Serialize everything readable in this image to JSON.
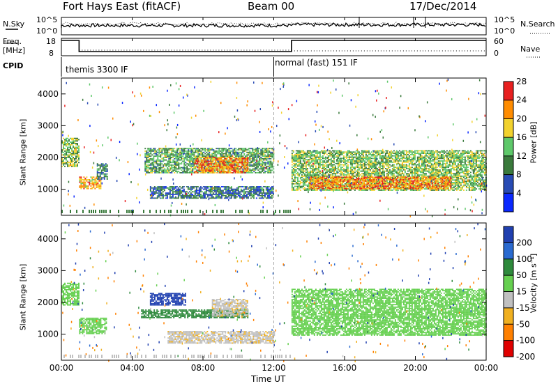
{
  "header": {
    "station": "Fort Hays East (fitACF)",
    "beam": "Beam 00",
    "date": "17/Dec/2014"
  },
  "top_panel": {
    "nsky_label": "N.Sky",
    "nsearch_label": "N.Search",
    "left_ticks": [
      "10^5",
      "10^0"
    ],
    "right_ticks": [
      "10^5",
      "10^0"
    ],
    "freq_label_1": "Freq.",
    "freq_label_2": "[MHz]",
    "freq_ticks": [
      "18",
      "8"
    ],
    "nave_label": "Nave",
    "nave_ticks": [
      "60",
      "0"
    ],
    "cpid_label": "CPID",
    "cpid_modes": [
      "themis 3300 IF",
      "normal (fast) 151 IF"
    ]
  },
  "chart_data": [
    {
      "type": "heatmap",
      "title": "",
      "ylabel": "Slant Range [km]",
      "xlabel": "",
      "x_ticks": [
        "00:00",
        "04:00",
        "08:00",
        "12:00",
        "16:00",
        "20:00",
        "00:00"
      ],
      "xlim_hours": [
        0,
        24
      ],
      "y_ticks": [
        1000,
        2000,
        3000,
        4000
      ],
      "ylim_km": [
        180,
        4500
      ],
      "colorbar": {
        "label": "Power [dB]",
        "ticks": [
          4,
          8,
          12,
          16,
          20,
          24,
          28
        ],
        "colors": [
          "#0a28ff",
          "#284bb4",
          "#3a7a3c",
          "#5ec86a",
          "#f2d22e",
          "#ff8c00",
          "#e82020"
        ]
      },
      "regions": [
        {
          "t0": 0.0,
          "t1": 1.0,
          "r0": 1700,
          "r1": 2600,
          "power": 16
        },
        {
          "t0": 1.0,
          "t1": 2.2,
          "r0": 1000,
          "r1": 1400,
          "power": 22
        },
        {
          "t0": 2.0,
          "t1": 2.6,
          "r0": 1300,
          "r1": 1800,
          "power": 12
        },
        {
          "t0": 4.7,
          "t1": 12.0,
          "r0": 1500,
          "r1": 2300,
          "power": 14
        },
        {
          "t0": 7.5,
          "t1": 10.5,
          "r0": 1500,
          "r1": 2000,
          "power": 24
        },
        {
          "t0": 5.0,
          "t1": 12.0,
          "r0": 700,
          "r1": 1100,
          "power": 10
        },
        {
          "t0": 13.0,
          "t1": 24.0,
          "r0": 950,
          "r1": 2200,
          "power": 16
        },
        {
          "t0": 14.0,
          "t1": 22.0,
          "r0": 1000,
          "r1": 1400,
          "power": 24
        }
      ]
    },
    {
      "type": "heatmap",
      "title": "",
      "ylabel": "Slant Range [km]",
      "xlabel": "Time UT",
      "x_ticks": [
        "00:00",
        "04:00",
        "08:00",
        "12:00",
        "16:00",
        "20:00",
        "00:00"
      ],
      "xlim_hours": [
        0,
        24
      ],
      "y_ticks": [
        1000,
        2000,
        3000,
        4000
      ],
      "ylim_km": [
        180,
        4500
      ],
      "colorbar": {
        "label": "Velocity [m s⁻¹]",
        "ticks": [
          "200",
          "100",
          "50",
          "15",
          "-15",
          "-50",
          "-100",
          "-200"
        ],
        "colors": [
          "#2040b0",
          "#2a6ad0",
          "#2e8a3c",
          "#66d050",
          "#c0c0c0",
          "#f0b020",
          "#ff8000",
          "#e00000"
        ]
      },
      "regions": [
        {
          "t0": 0.0,
          "t1": 1.0,
          "r0": 1900,
          "r1": 2600,
          "velocity": 0
        },
        {
          "t0": 1.0,
          "t1": 2.5,
          "r0": 1000,
          "r1": 1500,
          "velocity": 0
        },
        {
          "t0": 5.0,
          "t1": 7.0,
          "r0": 1900,
          "r1": 2300,
          "velocity": 150
        },
        {
          "t0": 4.5,
          "t1": 10.5,
          "r0": 1500,
          "r1": 1750,
          "velocity": 30
        },
        {
          "t0": 8.5,
          "t1": 10.5,
          "r0": 1550,
          "r1": 2100,
          "velocity": -40
        },
        {
          "t0": 6.0,
          "t1": 12.0,
          "r0": 700,
          "r1": 1100,
          "velocity": -40
        },
        {
          "t0": 13.0,
          "t1": 24.0,
          "r0": 950,
          "r1": 2400,
          "velocity": 0
        }
      ]
    }
  ]
}
